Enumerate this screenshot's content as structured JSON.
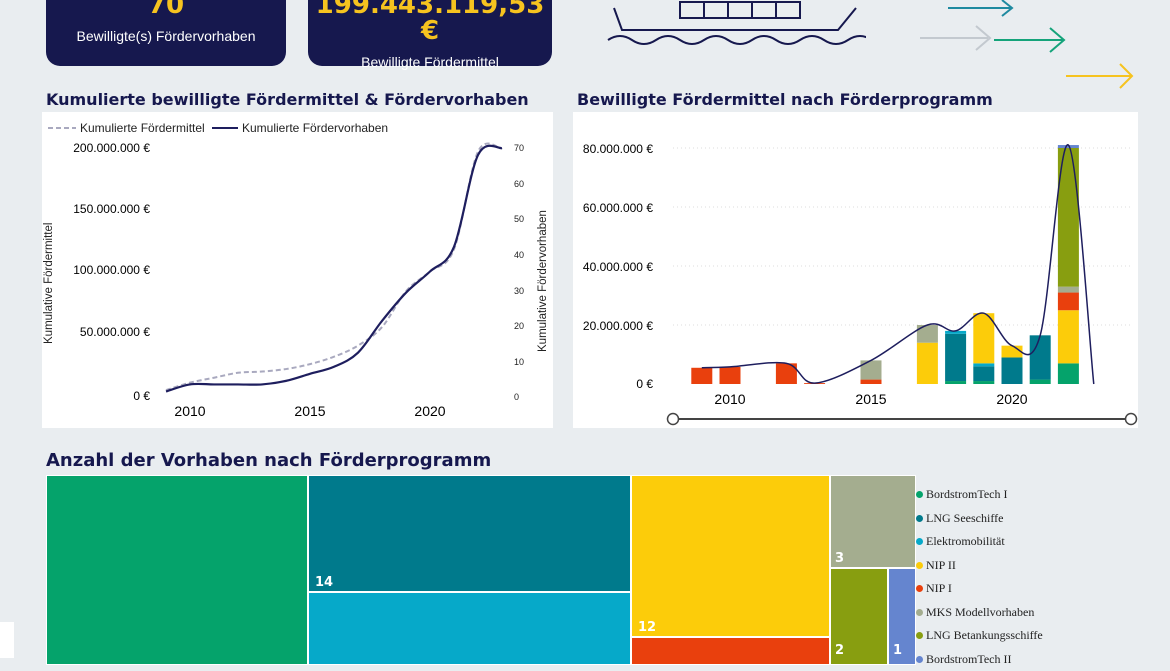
{
  "kpis": [
    {
      "value": "70",
      "label": "Bewilligte(s) Fördervorhaben"
    },
    {
      "value": "199.443.119,53 €",
      "label": "Bewilligte Fördermittel"
    }
  ],
  "icons": [
    "ship-icon",
    "arrow-right-icon"
  ],
  "colors": {
    "navy": "#16184e",
    "gold": "#f6c31f",
    "bg": "#e9edf0"
  },
  "chart1": {
    "title": "Kumulierte bewilligte Fördermittel & Fördervorhaben",
    "legend": [
      "Kumulierte Fördermittel",
      "Kumulierte Fördervorhaben"
    ],
    "ylabel_left": "Kumulative Fördermittel",
    "ylabel_right": "Kumulative Fördervorhaben",
    "y_ticks_left": [
      "200.000.000 €",
      "150.000.000 €",
      "100.000.000 €",
      "50.000.000 €",
      "0 €"
    ],
    "y_ticks_right": [
      "70",
      "60",
      "50",
      "40",
      "30",
      "20",
      "10",
      "0"
    ],
    "x_ticks": [
      "2010",
      "2015",
      "2020"
    ]
  },
  "chart2": {
    "title": "Bewilligte Fördermittel nach Förderprogramm",
    "y_ticks": [
      "80.000.000 €",
      "60.000.000 €",
      "40.000.000 €",
      "20.000.000 €",
      "0 €"
    ],
    "x_ticks": [
      "2010",
      "2015",
      "2020"
    ]
  },
  "chart3": {
    "title": "Anzahl der Vorhaben nach Förderprogramm",
    "labels": [
      "14",
      "12",
      "3",
      "2",
      "1"
    ],
    "legend": [
      "BordstromTech I",
      "LNG Seeschiffe",
      "Elektromobilität",
      "NIP II",
      "NIP I",
      "MKS Modellvorhaben",
      "LNG Betankungsschiffe",
      "BordstromTech II"
    ],
    "legend_colors": [
      "#05a36b",
      "#007a8c",
      "#06a9c9",
      "#fccc0a",
      "#e9400d",
      "#a4ad8f",
      "#889e10",
      "#6585cf"
    ]
  },
  "chart_data": [
    {
      "type": "line",
      "title": "Kumulierte bewilligte Fördermittel & Fördervorhaben",
      "x": [
        2009,
        2010,
        2011,
        2012,
        2013,
        2014,
        2015,
        2016,
        2017,
        2018,
        2019,
        2020,
        2021,
        2022,
        2023
      ],
      "series": [
        {
          "name": "Kumulierte Fördermittel",
          "axis": "left",
          "values": [
            4000000,
            10000000,
            14000000,
            18000000,
            19000000,
            21000000,
            25000000,
            31000000,
            40000000,
            55000000,
            84000000,
            100000000,
            118000000,
            197000000,
            199443119.53
          ]
        },
        {
          "name": "Kumulierte Fördervorhaben",
          "axis": "right",
          "values": [
            1,
            3,
            3,
            3,
            3,
            4,
            6,
            8,
            12,
            21,
            29,
            35,
            42,
            68,
            70
          ]
        }
      ],
      "ylabel": "Kumulative Fördermittel",
      "ylim": [
        0,
        200000000
      ],
      "ylim_right": [
        0,
        70
      ]
    },
    {
      "type": "bar",
      "stacked": true,
      "title": "Bewilligte Fördermittel nach Förderprogramm",
      "x": [
        2009,
        2010,
        2012,
        2013,
        2015,
        2017,
        2018,
        2019,
        2020,
        2021,
        2022
      ],
      "series": [
        {
          "name": "BordstromTech I",
          "color": "#05a36b",
          "values": [
            0,
            0,
            0,
            0,
            0,
            0,
            1000000,
            1000000,
            0,
            1500000,
            7000000
          ]
        },
        {
          "name": "LNG Seeschiffe",
          "color": "#007a8c",
          "values": [
            0,
            0,
            0,
            0,
            0,
            0,
            16000000,
            5000000,
            9000000,
            15000000,
            0
          ]
        },
        {
          "name": "Elektromobilität",
          "color": "#06a9c9",
          "values": [
            0,
            0,
            0,
            0,
            0,
            0,
            1000000,
            1000000,
            0,
            0,
            0
          ]
        },
        {
          "name": "NIP II",
          "color": "#fccc0a",
          "values": [
            0,
            0,
            0,
            0,
            0,
            14000000,
            0,
            17000000,
            4000000,
            0,
            18000000
          ]
        },
        {
          "name": "NIP I",
          "color": "#e9400d",
          "values": [
            5500000,
            5800000,
            7000000,
            300000,
            1500000,
            0,
            0,
            0,
            0,
            0,
            6000000
          ]
        },
        {
          "name": "MKS Modellvorhaben",
          "color": "#a4ad8f",
          "values": [
            0,
            0,
            0,
            0,
            6500000,
            6000000,
            0,
            0,
            0,
            0,
            2000000
          ]
        },
        {
          "name": "LNG Betankungsschiffe",
          "color": "#889e10",
          "values": [
            0,
            0,
            0,
            0,
            0,
            0,
            0,
            0,
            0,
            0,
            47000000
          ]
        },
        {
          "name": "BordstromTech II",
          "color": "#6585cf",
          "values": [
            0,
            0,
            0,
            0,
            0,
            0,
            0,
            0,
            0,
            0,
            1000000
          ]
        }
      ],
      "ylim": [
        0,
        85000000
      ]
    },
    {
      "type": "treemap",
      "title": "Anzahl der Vorhaben nach Förderprogramm",
      "categories": [
        "BordstromTech I",
        "LNG Seeschiffe",
        "Elektromobilität",
        "NIP II",
        "NIP I",
        "MKS Modellvorhaben",
        "LNG Betankungsschiffe",
        "BordstromTech II"
      ],
      "values": [
        null,
        14,
        null,
        12,
        null,
        3,
        2,
        1
      ]
    }
  ]
}
